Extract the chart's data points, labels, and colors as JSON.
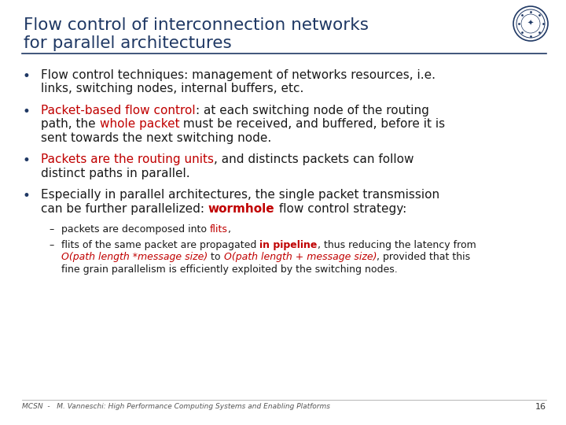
{
  "title_line1": "Flow control of interconnection networks",
  "title_line2": "for parallel architectures",
  "title_color": "#1f3864",
  "bg_color": "#ffffff",
  "footer_text": "MCSN  -   M. Vanneschi: High Performance Computing Systems and Enabling Platforms",
  "footer_page": "16",
  "bullet_color": "#1f3864",
  "red_color": "#c00000",
  "dark_color": "#1a1a1a",
  "bullets": [
    {
      "type": "bullet",
      "parts": [
        {
          "text": "Flow control techniques: management of networks resources, i.e.\nlinks, switching nodes, internal buffers, etc.",
          "color": "#1a1a1a",
          "bold": false,
          "italic": false
        }
      ]
    },
    {
      "type": "bullet",
      "parts": [
        {
          "text": "Packet-based flow control",
          "color": "#c00000",
          "bold": false,
          "italic": false
        },
        {
          "text": ": at each switching node of the routing\npath, the ",
          "color": "#1a1a1a",
          "bold": false,
          "italic": false
        },
        {
          "text": "whole packet",
          "color": "#c00000",
          "bold": false,
          "italic": false
        },
        {
          "text": " must be received, and buffered, before it is\nsent towards the next switching node.",
          "color": "#1a1a1a",
          "bold": false,
          "italic": false
        }
      ]
    },
    {
      "type": "bullet",
      "parts": [
        {
          "text": "Packets are the routing units",
          "color": "#c00000",
          "bold": false,
          "italic": false
        },
        {
          "text": ", and distincts packets can follow\ndistinct paths in parallel.",
          "color": "#1a1a1a",
          "bold": false,
          "italic": false
        }
      ]
    },
    {
      "type": "bullet",
      "parts": [
        {
          "text": "Especially in parallel architectures, the single packet transmission\ncan be further parallelized: ",
          "color": "#1a1a1a",
          "bold": false,
          "italic": false
        },
        {
          "text": "wormhole",
          "color": "#c00000",
          "bold": true,
          "italic": false
        },
        {
          "text": " flow control strategy:",
          "color": "#1a1a1a",
          "bold": false,
          "italic": false
        }
      ]
    },
    {
      "type": "sub",
      "parts": [
        {
          "text": "packets are decomposed into ",
          "color": "#1a1a1a",
          "bold": false,
          "italic": false
        },
        {
          "text": "flits",
          "color": "#c00000",
          "bold": false,
          "italic": false
        },
        {
          "text": ",",
          "color": "#1a1a1a",
          "bold": false,
          "italic": false
        }
      ]
    },
    {
      "type": "sub",
      "parts": [
        {
          "text": "flits of the same packet are propagated ",
          "color": "#1a1a1a",
          "bold": false,
          "italic": false
        },
        {
          "text": "in pipeline",
          "color": "#c00000",
          "bold": true,
          "italic": false
        },
        {
          "text": ", thus reducing the latency from\n",
          "color": "#1a1a1a",
          "bold": false,
          "italic": false
        },
        {
          "text": "O(path length *message size)",
          "color": "#c00000",
          "bold": false,
          "italic": true
        },
        {
          "text": " to ",
          "color": "#1a1a1a",
          "bold": false,
          "italic": false
        },
        {
          "text": "O(path length + message size)",
          "color": "#c00000",
          "bold": false,
          "italic": true
        },
        {
          "text": ", provided that this\nfine grain parallelism is efficiently exploited by the switching nodes.",
          "color": "#1a1a1a",
          "bold": false,
          "italic": false
        }
      ]
    }
  ],
  "title_fontsize": 15.5,
  "main_fontsize": 11.0,
  "sub_fontsize": 9.0,
  "fig_width": 7.2,
  "fig_height": 5.4,
  "dpi": 100
}
